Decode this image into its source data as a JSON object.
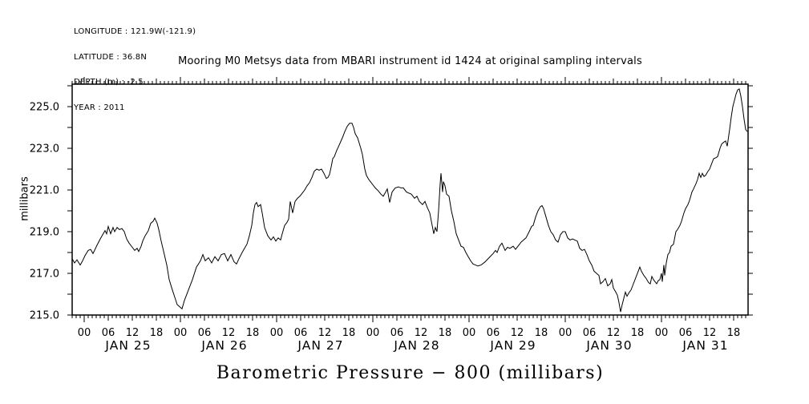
{
  "page": {
    "background": "#ffffff",
    "text_color": "#000000"
  },
  "meta_block": {
    "lines": [
      "LONGITUDE : 121.9W(-121.9)",
      "LATITUDE : 36.8N",
      "DEPTH (m) : -2.5",
      "YEAR : 2011"
    ]
  },
  "chart_data": {
    "type": "line",
    "title": "Mooring M0 Metsys data from MBARI instrument id 1424 at original sampling intervals",
    "xlabel": "Barometric Pressure − 800 (millibars)",
    "ylabel": "millibars",
    "x_unit": "hours since JAN 25 00:00, year 2011",
    "xlim": [
      -3,
      165.4
    ],
    "ylim": [
      215.0,
      226.1
    ],
    "grid": false,
    "legend": "none",
    "line_color": "#000000",
    "y_major_ticks": [
      225.0,
      223.0,
      221.0,
      219.0,
      217.0,
      215.0
    ],
    "y_tick_labels": [
      "225.0",
      "223.0",
      "221.0",
      "219.0",
      "217.0",
      "215.0"
    ],
    "y_minor_step": 1.0,
    "x_hour_tick_labels": [
      "00",
      "06",
      "12",
      "18"
    ],
    "x_day_labels": [
      "JAN 25",
      "JAN 26",
      "JAN 27",
      "JAN 28",
      "JAN 29",
      "JAN 30",
      "JAN 31"
    ],
    "series": [
      {
        "name": "barometric_pressure_minus_800",
        "points": [
          [
            -3.0,
            217.7
          ],
          [
            -2.4,
            217.5
          ],
          [
            -1.8,
            217.65
          ],
          [
            -1.0,
            217.4
          ],
          [
            -0.4,
            217.6
          ],
          [
            0.2,
            217.85
          ],
          [
            1.0,
            218.1
          ],
          [
            1.6,
            218.15
          ],
          [
            2.2,
            217.95
          ],
          [
            3.2,
            218.35
          ],
          [
            4.0,
            218.65
          ],
          [
            4.6,
            218.85
          ],
          [
            5.2,
            219.05
          ],
          [
            5.6,
            218.9
          ],
          [
            6.0,
            219.25
          ],
          [
            6.6,
            218.9
          ],
          [
            7.2,
            219.2
          ],
          [
            7.6,
            219.0
          ],
          [
            8.2,
            219.2
          ],
          [
            8.8,
            219.1
          ],
          [
            9.4,
            219.15
          ],
          [
            10.0,
            219.0
          ],
          [
            10.6,
            218.65
          ],
          [
            11.2,
            218.45
          ],
          [
            12.0,
            218.25
          ],
          [
            12.6,
            218.1
          ],
          [
            13.2,
            218.2
          ],
          [
            13.6,
            218.05
          ],
          [
            14.2,
            218.3
          ],
          [
            14.6,
            218.55
          ],
          [
            15.2,
            218.8
          ],
          [
            16.0,
            219.05
          ],
          [
            16.6,
            219.4
          ],
          [
            17.2,
            219.5
          ],
          [
            17.6,
            219.65
          ],
          [
            18.2,
            219.4
          ],
          [
            18.6,
            219.1
          ],
          [
            19.2,
            218.55
          ],
          [
            20.0,
            217.9
          ],
          [
            20.6,
            217.4
          ],
          [
            21.2,
            216.7
          ],
          [
            22.0,
            216.2
          ],
          [
            22.6,
            215.85
          ],
          [
            23.2,
            215.5
          ],
          [
            23.8,
            215.4
          ],
          [
            24.4,
            215.3
          ],
          [
            25.0,
            215.7
          ],
          [
            26.0,
            216.2
          ],
          [
            27.0,
            216.7
          ],
          [
            28.0,
            217.3
          ],
          [
            29.0,
            217.6
          ],
          [
            29.6,
            217.9
          ],
          [
            30.2,
            217.6
          ],
          [
            31.0,
            217.75
          ],
          [
            31.8,
            217.5
          ],
          [
            32.6,
            217.8
          ],
          [
            33.4,
            217.6
          ],
          [
            34.2,
            217.9
          ],
          [
            35.0,
            217.95
          ],
          [
            35.8,
            217.6
          ],
          [
            36.6,
            217.9
          ],
          [
            37.4,
            217.55
          ],
          [
            38.0,
            217.45
          ],
          [
            38.6,
            217.7
          ],
          [
            39.4,
            218.0
          ],
          [
            40.0,
            218.2
          ],
          [
            40.6,
            218.4
          ],
          [
            41.2,
            218.8
          ],
          [
            41.8,
            219.3
          ],
          [
            42.2,
            219.9
          ],
          [
            42.6,
            220.3
          ],
          [
            43.0,
            220.4
          ],
          [
            43.4,
            220.2
          ],
          [
            44.0,
            220.3
          ],
          [
            44.4,
            219.9
          ],
          [
            45.0,
            219.2
          ],
          [
            45.8,
            218.8
          ],
          [
            46.6,
            218.6
          ],
          [
            47.2,
            218.75
          ],
          [
            47.8,
            218.55
          ],
          [
            48.4,
            218.7
          ],
          [
            49.0,
            218.6
          ],
          [
            49.4,
            218.9
          ],
          [
            50.0,
            219.3
          ],
          [
            50.6,
            219.45
          ],
          [
            51.0,
            219.6
          ],
          [
            51.4,
            220.45
          ],
          [
            52.0,
            219.9
          ],
          [
            52.6,
            220.45
          ],
          [
            53.2,
            220.6
          ],
          [
            53.8,
            220.7
          ],
          [
            54.4,
            220.85
          ],
          [
            55.0,
            221.0
          ],
          [
            55.6,
            221.2
          ],
          [
            56.2,
            221.35
          ],
          [
            56.8,
            221.6
          ],
          [
            57.4,
            221.9
          ],
          [
            58.0,
            222.0
          ],
          [
            58.6,
            221.95
          ],
          [
            59.2,
            222.0
          ],
          [
            59.8,
            221.8
          ],
          [
            60.4,
            221.55
          ],
          [
            60.8,
            221.6
          ],
          [
            61.2,
            221.75
          ],
          [
            61.6,
            222.1
          ],
          [
            62.0,
            222.5
          ],
          [
            62.4,
            222.6
          ],
          [
            63.0,
            222.9
          ],
          [
            63.6,
            223.15
          ],
          [
            64.4,
            223.5
          ],
          [
            65.0,
            223.8
          ],
          [
            65.6,
            224.05
          ],
          [
            66.2,
            224.2
          ],
          [
            66.8,
            224.2
          ],
          [
            67.2,
            224.0
          ],
          [
            67.6,
            223.7
          ],
          [
            68.2,
            223.5
          ],
          [
            69.0,
            223.0
          ],
          [
            69.4,
            222.7
          ],
          [
            70.0,
            222.0
          ],
          [
            70.4,
            221.7
          ],
          [
            71.0,
            221.5
          ],
          [
            71.4,
            221.4
          ],
          [
            72.0,
            221.25
          ],
          [
            72.6,
            221.1
          ],
          [
            73.4,
            220.95
          ],
          [
            74.0,
            220.8
          ],
          [
            74.6,
            220.7
          ],
          [
            75.2,
            220.9
          ],
          [
            75.6,
            221.05
          ],
          [
            76.2,
            220.4
          ],
          [
            76.8,
            220.9
          ],
          [
            77.6,
            221.1
          ],
          [
            78.4,
            221.15
          ],
          [
            79.0,
            221.1
          ],
          [
            79.6,
            221.1
          ],
          [
            80.4,
            220.9
          ],
          [
            81.0,
            220.85
          ],
          [
            81.6,
            220.8
          ],
          [
            82.4,
            220.6
          ],
          [
            83.0,
            220.7
          ],
          [
            83.6,
            220.45
          ],
          [
            84.4,
            220.3
          ],
          [
            85.0,
            220.45
          ],
          [
            85.6,
            220.15
          ],
          [
            86.2,
            219.9
          ],
          [
            86.8,
            219.3
          ],
          [
            87.2,
            218.9
          ],
          [
            87.6,
            219.2
          ],
          [
            88.0,
            219.0
          ],
          [
            88.4,
            220.0
          ],
          [
            88.8,
            221.3
          ],
          [
            89.0,
            221.8
          ],
          [
            89.4,
            220.9
          ],
          [
            89.6,
            221.4
          ],
          [
            90.0,
            221.2
          ],
          [
            90.4,
            220.8
          ],
          [
            91.0,
            220.7
          ],
          [
            91.6,
            220.0
          ],
          [
            92.2,
            219.5
          ],
          [
            92.8,
            218.9
          ],
          [
            93.4,
            218.6
          ],
          [
            94.0,
            218.3
          ],
          [
            94.6,
            218.25
          ],
          [
            95.2,
            218.0
          ],
          [
            95.8,
            217.8
          ],
          [
            96.4,
            217.6
          ],
          [
            97.0,
            217.45
          ],
          [
            97.6,
            217.4
          ],
          [
            98.2,
            217.35
          ],
          [
            99.0,
            217.4
          ],
          [
            100.0,
            217.55
          ],
          [
            101.0,
            217.75
          ],
          [
            102.0,
            217.95
          ],
          [
            102.6,
            218.1
          ],
          [
            103.0,
            218.0
          ],
          [
            103.6,
            218.3
          ],
          [
            104.2,
            218.45
          ],
          [
            105.0,
            218.1
          ],
          [
            105.6,
            218.25
          ],
          [
            106.2,
            218.2
          ],
          [
            107.0,
            218.3
          ],
          [
            107.6,
            218.15
          ],
          [
            108.2,
            218.3
          ],
          [
            109.0,
            218.5
          ],
          [
            109.6,
            218.6
          ],
          [
            110.2,
            218.7
          ],
          [
            111.0,
            219.0
          ],
          [
            111.6,
            219.25
          ],
          [
            112.0,
            219.3
          ],
          [
            112.6,
            219.7
          ],
          [
            113.2,
            220.0
          ],
          [
            113.8,
            220.2
          ],
          [
            114.2,
            220.25
          ],
          [
            114.6,
            220.1
          ],
          [
            115.2,
            219.7
          ],
          [
            115.8,
            219.3
          ],
          [
            116.4,
            219.0
          ],
          [
            117.0,
            218.85
          ],
          [
            117.6,
            218.6
          ],
          [
            118.2,
            218.5
          ],
          [
            118.8,
            218.85
          ],
          [
            119.4,
            219.0
          ],
          [
            120.0,
            219.0
          ],
          [
            120.6,
            218.7
          ],
          [
            121.2,
            218.6
          ],
          [
            121.8,
            218.65
          ],
          [
            122.4,
            218.6
          ],
          [
            123.0,
            218.55
          ],
          [
            123.6,
            218.2
          ],
          [
            124.2,
            218.1
          ],
          [
            124.8,
            218.15
          ],
          [
            125.4,
            217.9
          ],
          [
            126.0,
            217.6
          ],
          [
            126.6,
            217.4
          ],
          [
            127.2,
            217.1
          ],
          [
            127.8,
            217.0
          ],
          [
            128.4,
            216.9
          ],
          [
            128.8,
            216.5
          ],
          [
            129.4,
            216.6
          ],
          [
            130.0,
            216.75
          ],
          [
            130.6,
            216.4
          ],
          [
            131.2,
            216.5
          ],
          [
            131.6,
            216.7
          ],
          [
            132.0,
            216.3
          ],
          [
            132.6,
            216.1
          ],
          [
            133.0,
            215.95
          ],
          [
            133.4,
            215.6
          ],
          [
            133.8,
            215.15
          ],
          [
            134.2,
            215.5
          ],
          [
            134.6,
            215.8
          ],
          [
            135.0,
            216.1
          ],
          [
            135.4,
            215.9
          ],
          [
            136.0,
            216.1
          ],
          [
            136.4,
            216.2
          ],
          [
            137.0,
            216.5
          ],
          [
            137.6,
            216.8
          ],
          [
            138.2,
            217.1
          ],
          [
            138.6,
            217.3
          ],
          [
            139.0,
            217.1
          ],
          [
            139.6,
            216.9
          ],
          [
            140.2,
            216.75
          ],
          [
            140.8,
            216.55
          ],
          [
            141.2,
            216.5
          ],
          [
            141.6,
            216.85
          ],
          [
            142.0,
            216.7
          ],
          [
            142.4,
            216.6
          ],
          [
            142.8,
            216.5
          ],
          [
            143.2,
            216.65
          ],
          [
            143.6,
            216.7
          ],
          [
            144.0,
            217.0
          ],
          [
            144.2,
            216.6
          ],
          [
            144.6,
            217.4
          ],
          [
            144.8,
            216.9
          ],
          [
            145.2,
            217.5
          ],
          [
            145.6,
            217.9
          ],
          [
            146.0,
            218.0
          ],
          [
            146.4,
            218.3
          ],
          [
            147.0,
            218.4
          ],
          [
            147.6,
            219.0
          ],
          [
            148.0,
            219.1
          ],
          [
            148.6,
            219.3
          ],
          [
            149.0,
            219.5
          ],
          [
            149.6,
            219.9
          ],
          [
            150.0,
            220.1
          ],
          [
            150.6,
            220.3
          ],
          [
            151.0,
            220.5
          ],
          [
            151.6,
            220.9
          ],
          [
            152.0,
            221.05
          ],
          [
            152.6,
            221.3
          ],
          [
            153.0,
            221.5
          ],
          [
            153.4,
            221.8
          ],
          [
            153.8,
            221.6
          ],
          [
            154.2,
            221.8
          ],
          [
            154.6,
            221.65
          ],
          [
            155.0,
            221.7
          ],
          [
            155.6,
            221.9
          ],
          [
            156.0,
            222.0
          ],
          [
            156.6,
            222.3
          ],
          [
            157.0,
            222.5
          ],
          [
            157.6,
            222.55
          ],
          [
            158.0,
            222.6
          ],
          [
            158.6,
            223.0
          ],
          [
            159.0,
            223.2
          ],
          [
            159.6,
            223.3
          ],
          [
            160.0,
            223.35
          ],
          [
            160.4,
            223.1
          ],
          [
            161.0,
            223.9
          ],
          [
            161.4,
            224.5
          ],
          [
            161.8,
            225.0
          ],
          [
            162.2,
            225.3
          ],
          [
            162.6,
            225.6
          ],
          [
            163.0,
            225.8
          ],
          [
            163.4,
            225.85
          ],
          [
            163.8,
            225.5
          ],
          [
            164.2,
            225.0
          ],
          [
            164.6,
            224.4
          ],
          [
            165.0,
            223.9
          ],
          [
            165.4,
            223.8
          ]
        ]
      }
    ]
  }
}
